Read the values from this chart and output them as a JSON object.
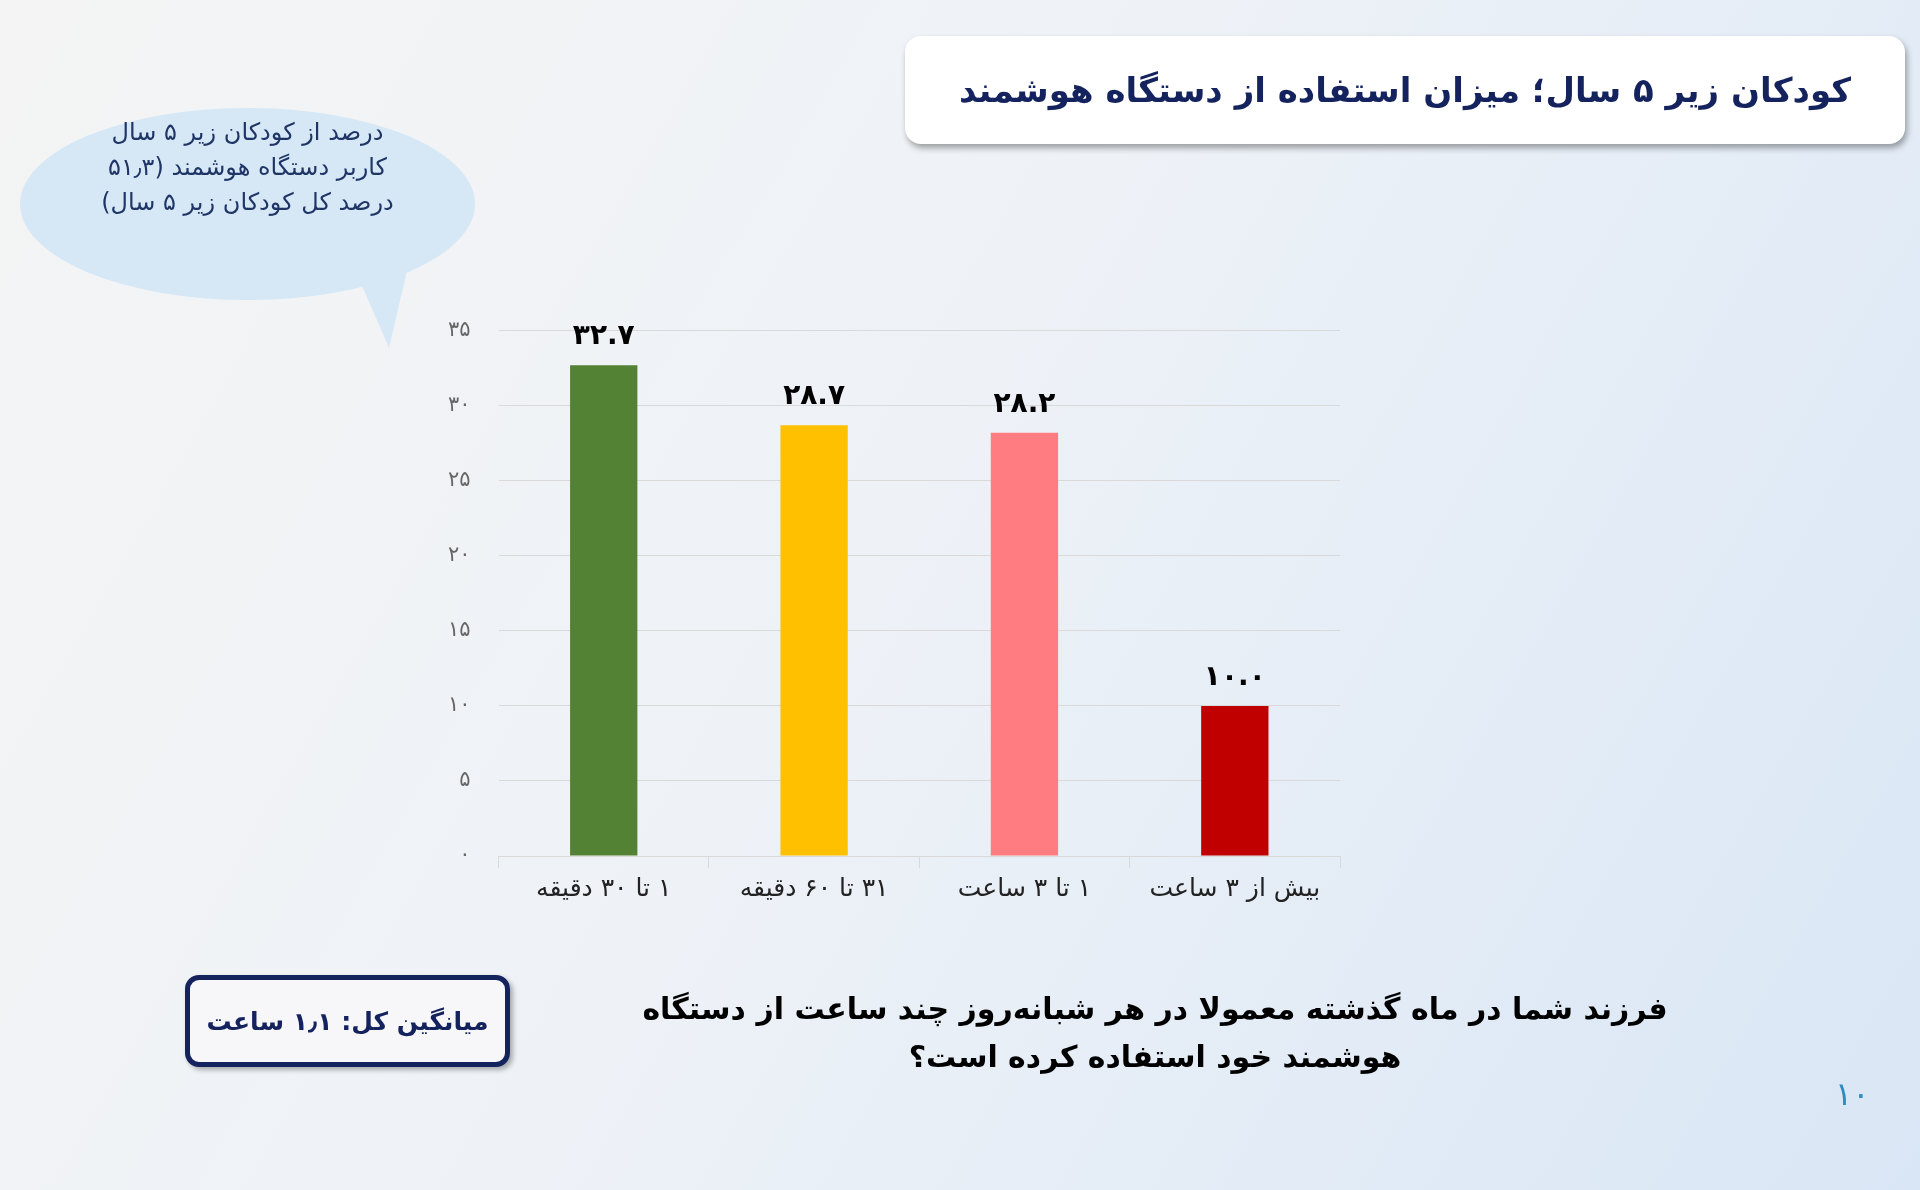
{
  "chart_data": {
    "type": "bar",
    "title": "کودکان زیر ۵ سال؛ میزان استفاده از دستگاه هوشمند",
    "categories": [
      "۱ تا ۳۰ دقیقه",
      "۳۱ تا ۶۰ دقیقه",
      "۱ تا ۳ ساعت",
      "بیش از ۳ ساعت"
    ],
    "values": [
      32.7,
      28.7,
      28.2,
      10.0
    ],
    "colors": [
      "#548235",
      "#ffc000",
      "#ff7c80",
      "#c00000"
    ],
    "value_labels": [
      "۳۲.۷",
      "۲۸.۷",
      "۲۸.۲",
      "۱۰.۰"
    ],
    "ylim": [
      0,
      35
    ],
    "yticks": [
      {
        "value": 0,
        "label": "۰"
      },
      {
        "value": 5,
        "label": "۵"
      },
      {
        "value": 10,
        "label": "۱۰"
      },
      {
        "value": 15,
        "label": "۱۵"
      },
      {
        "value": 20,
        "label": "۲۰"
      },
      {
        "value": 25,
        "label": "۲۵"
      },
      {
        "value": 30,
        "label": "۳۰"
      },
      {
        "value": 35,
        "label": "۳۵"
      }
    ],
    "grid": "y",
    "annotations": [
      "درصد از کودکان زیر ۵ سال کاربر دستگاه هوشمند (۵۱٫۳ درصد کل کودکان زیر ۵ سال)",
      "میانگین کل: ۱٫۱ ساعت",
      "فرزند شما در ماه گذشته معمولا در هر شبانه‌روز چند ساعت از دستگاه هوشمند خود استفاده کرده است؟",
      "۱۰"
    ]
  }
}
